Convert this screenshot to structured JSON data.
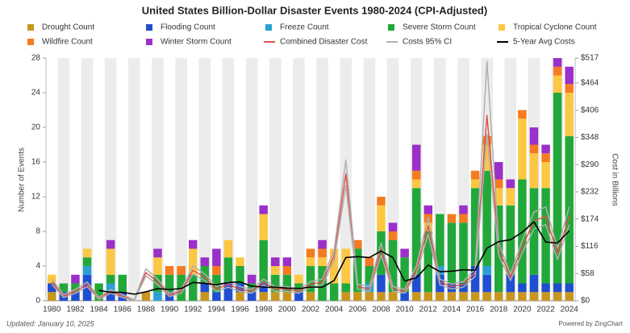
{
  "chart_data": {
    "type": "bar",
    "title": "United States Billion-Dollar Disaster Events 1980-2024 (CPI-Adjusted)",
    "ylabel": "Number of Events",
    "y2label": "Cost in Billions",
    "footnote": "Updated: January 10, 2025",
    "credit": "Powered by ZingChart",
    "stacked": true,
    "categories": [
      "1980",
      null,
      "1982",
      null,
      "1984",
      null,
      "1986",
      null,
      "1988",
      null,
      "1990",
      null,
      "1992",
      null,
      "1994",
      null,
      "1996",
      null,
      "1998",
      null,
      "2000",
      null,
      "2002",
      null,
      "2004",
      null,
      "2006",
      null,
      "2008",
      null,
      "2010",
      null,
      "2012",
      null,
      "2014",
      null,
      "2016",
      null,
      "2018",
      null,
      "2020",
      null,
      "2022",
      null,
      "2024"
    ],
    "ylim": [
      0,
      28
    ],
    "yticks": [
      0,
      4,
      8,
      12,
      16,
      20,
      24,
      28
    ],
    "y2lim": [
      0,
      517
    ],
    "y2ticks": [
      {
        "value": 0,
        "label": "$0"
      },
      {
        "value": 58,
        "label": "$58"
      },
      {
        "value": 116,
        "label": "$116"
      },
      {
        "value": 174,
        "label": "$174"
      },
      {
        "value": 232,
        "label": "$232"
      },
      {
        "value": 290,
        "label": "$290"
      },
      {
        "value": 348,
        "label": "$348"
      },
      {
        "value": 406,
        "label": "$406"
      },
      {
        "value": 464,
        "label": "$464"
      },
      {
        "value": 517,
        "label": "$517"
      }
    ],
    "series": [
      {
        "name": "Drought Count",
        "color": "#c8961e",
        "values": [
          1,
          0,
          0,
          0,
          0,
          0,
          0,
          0,
          1,
          0,
          0,
          0,
          0,
          1,
          0,
          0,
          1,
          0,
          1,
          1,
          1,
          0,
          1,
          0,
          0,
          1,
          1,
          1,
          1,
          1,
          0,
          1,
          1,
          1,
          1,
          1,
          1,
          1,
          1,
          1,
          1,
          1,
          1,
          1,
          1
        ]
      },
      {
        "name": "Flooding Count",
        "color": "#1f4fd0",
        "values": [
          1,
          1,
          1,
          3,
          0,
          1,
          1,
          0,
          0,
          0,
          1,
          0,
          0,
          1,
          1,
          2,
          1,
          1,
          1,
          0,
          0,
          1,
          0,
          0,
          0,
          0,
          0,
          0,
          2,
          0,
          1,
          2,
          0,
          2,
          1,
          1,
          3,
          2,
          0,
          2,
          1,
          2,
          1,
          1,
          1
        ]
      },
      {
        "name": "Freeze Count",
        "color": "#2aa0d4",
        "values": [
          0,
          0,
          0,
          1,
          0,
          1,
          0,
          0,
          0,
          1,
          0,
          0,
          0,
          0,
          0,
          0,
          0,
          0,
          0,
          0,
          0,
          0,
          0,
          0,
          0,
          0,
          0,
          1,
          0,
          0,
          0,
          0,
          0,
          1,
          0,
          0,
          0,
          1,
          0,
          0,
          0,
          0,
          0,
          0,
          0
        ]
      },
      {
        "name": "Severe Storm Count",
        "color": "#22a83a",
        "values": [
          0,
          1,
          1,
          1,
          2,
          1,
          2,
          0,
          0,
          2,
          2,
          3,
          3,
          2,
          2,
          3,
          2,
          1,
          5,
          2,
          2,
          1,
          3,
          4,
          2,
          1,
          5,
          2,
          5,
          6,
          4,
          10,
          7,
          6,
          7,
          7,
          9,
          11,
          10,
          8,
          12,
          10,
          11,
          22,
          17
        ]
      },
      {
        "name": "Tropical Cyclone Count",
        "color": "#fbc843",
        "values": [
          1,
          0,
          0,
          1,
          0,
          3,
          0,
          0,
          0,
          2,
          0,
          0,
          3,
          0,
          0,
          2,
          1,
          0,
          3,
          1,
          0,
          1,
          1,
          1,
          4,
          4,
          0,
          0,
          3,
          0,
          0,
          1,
          1,
          0,
          0,
          0,
          1,
          3,
          2,
          2,
          7,
          4,
          3,
          2,
          5
        ]
      },
      {
        "name": "Wildfire Count",
        "color": "#f47b20",
        "values": [
          0,
          0,
          0,
          0,
          0,
          0,
          0,
          0,
          0,
          0,
          1,
          1,
          0,
          0,
          1,
          0,
          0,
          0,
          0,
          0,
          1,
          0,
          1,
          1,
          0,
          0,
          1,
          1,
          1,
          1,
          0,
          1,
          1,
          0,
          1,
          1,
          1,
          1,
          1,
          0,
          1,
          1,
          1,
          1,
          1
        ]
      },
      {
        "name": "Winter Storm Count",
        "color": "#9b2fc9",
        "values": [
          0,
          0,
          1,
          0,
          0,
          1,
          0,
          0,
          0,
          1,
          0,
          0,
          1,
          1,
          2,
          0,
          0,
          1,
          1,
          1,
          1,
          0,
          0,
          1,
          0,
          0,
          0,
          0,
          0,
          1,
          1,
          3,
          1,
          0,
          0,
          1,
          0,
          0,
          2,
          1,
          0,
          2,
          1,
          1,
          2
        ]
      },
      {
        "name": "Combined Disaster Cost",
        "color": "#e0524a",
        "axis": "y2",
        "values": [
          40,
          10,
          20,
          35,
          5,
          20,
          10,
          0,
          60,
          40,
          12,
          20,
          65,
          50,
          25,
          35,
          25,
          20,
          40,
          25,
          25,
          20,
          35,
          40,
          95,
          270,
          30,
          25,
          110,
          25,
          20,
          65,
          160,
          40,
          30,
          35,
          60,
          395,
          110,
          50,
          115,
          170,
          180,
          100,
          180
        ]
      },
      {
        "name": "Costs 95% CI",
        "color": "#b0b0b0",
        "axis": "y2",
        "values": [
          46,
          13,
          24,
          40,
          7,
          24,
          13,
          2,
          68,
          46,
          15,
          24,
          74,
          57,
          30,
          41,
          30,
          24,
          46,
          30,
          30,
          24,
          41,
          46,
          107,
          300,
          35,
          30,
          123,
          30,
          24,
          74,
          178,
          46,
          35,
          41,
          68,
          510,
          123,
          57,
          128,
          189,
          200,
          112,
          200
        ],
        "lower": [
          35,
          7,
          16,
          30,
          3,
          16,
          7,
          0,
          53,
          34,
          9,
          16,
          57,
          43,
          20,
          29,
          20,
          16,
          34,
          20,
          20,
          16,
          29,
          34,
          84,
          245,
          25,
          20,
          97,
          20,
          16,
          57,
          142,
          34,
          25,
          29,
          52,
          355,
          97,
          43,
          102,
          153,
          162,
          88,
          162
        ]
      },
      {
        "name": "5-Year Avg Costs",
        "color": "#000000",
        "axis": "y2",
        "values": [
          null,
          null,
          null,
          null,
          22,
          18,
          18,
          14,
          19,
          26,
          24,
          26,
          39,
          37,
          34,
          39,
          40,
          31,
          29,
          29,
          27,
          26,
          29,
          29,
          43,
          92,
          94,
          92,
          106,
          92,
          42,
          49,
          76,
          62,
          63,
          66,
          65,
          112,
          126,
          130,
          146,
          168,
          125,
          123,
          149
        ]
      }
    ]
  }
}
